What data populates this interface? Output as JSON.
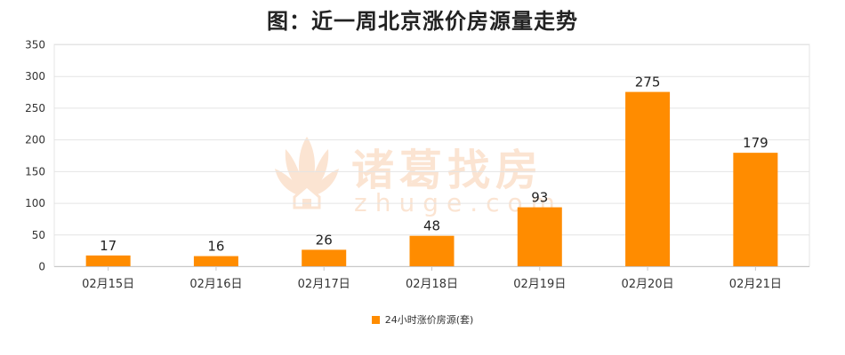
{
  "title": "图：近一周北京涨价房源量走势",
  "watermark": {
    "brand": "诸葛找房",
    "url": "zhuge.com"
  },
  "legend": {
    "label": "24小时涨价房源(套)"
  },
  "colors": {
    "bar": "#ff8c00",
    "grid": "#e4e4e4",
    "axis": "#c8c8c8"
  },
  "chart_data": {
    "type": "bar",
    "title": "图：近一周北京涨价房源量走势",
    "categories": [
      "02月15日",
      "02月16日",
      "02月17日",
      "02月18日",
      "02月19日",
      "02月20日",
      "02月21日"
    ],
    "series": [
      {
        "name": "24小时涨价房源(套)",
        "values": [
          17,
          16,
          26,
          48,
          93,
          275,
          179
        ]
      }
    ],
    "ylim": [
      0,
      350
    ],
    "yticks": [
      0,
      50,
      100,
      150,
      200,
      250,
      300,
      350
    ],
    "grid": true,
    "legend_position": "bottom-center",
    "data_labels": true
  }
}
